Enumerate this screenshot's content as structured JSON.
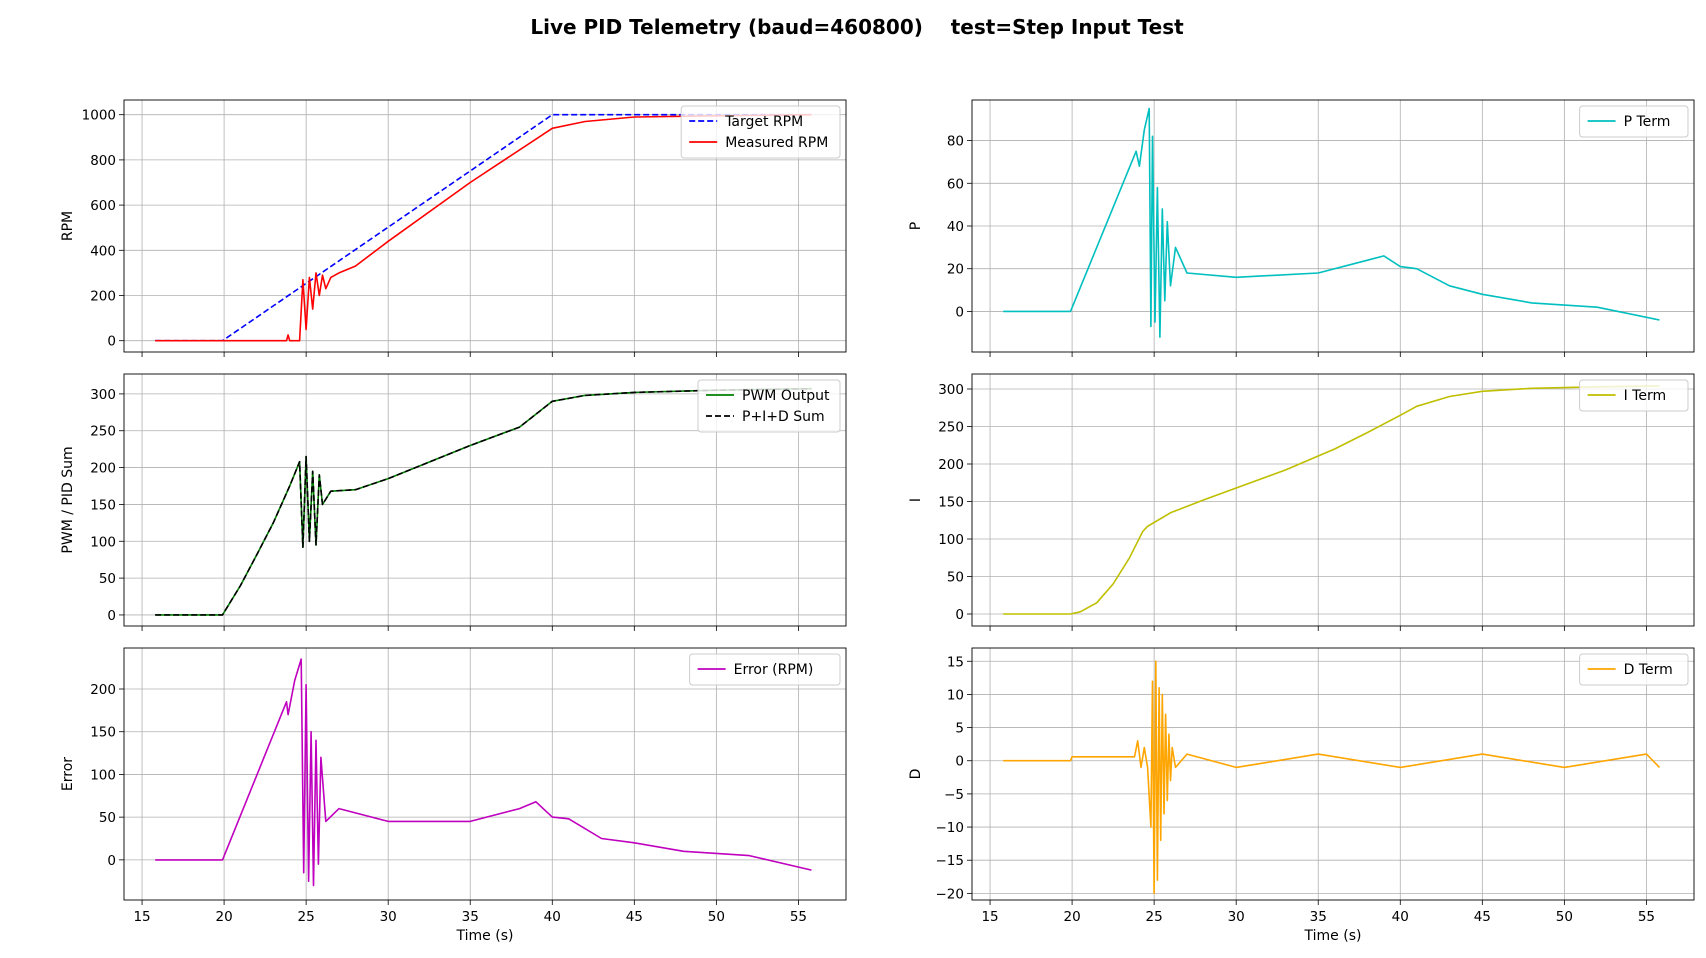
{
  "figure": {
    "title": "Live PID Telemetry (baud=460800)    test=Step Input Test"
  },
  "chart_data": [
    {
      "id": "rpm",
      "type": "line",
      "ylabel": "RPM",
      "xlabel": "",
      "xlim": [
        13.9,
        57.9
      ],
      "ylim": [
        -50,
        1065
      ],
      "xticks": [
        15,
        20,
        25,
        30,
        35,
        40,
        45,
        50,
        55
      ],
      "yticks": [
        0,
        200,
        400,
        600,
        800,
        1000
      ],
      "show_xticklabels": false,
      "grid": true,
      "legend_position": "upper-right",
      "series": [
        {
          "name": "Target RPM",
          "color": "#0000ff",
          "dash": "dashed",
          "x": [
            15.8,
            19.9,
            40.0,
            55.8
          ],
          "y": [
            0,
            0,
            1000,
            1000
          ]
        },
        {
          "name": "Measured RPM",
          "color": "#ff0000",
          "dash": "solid",
          "x": [
            15.8,
            19.9,
            23.8,
            23.9,
            24.0,
            24.6,
            24.8,
            25.0,
            25.2,
            25.4,
            25.6,
            25.8,
            26.0,
            26.2,
            26.5,
            27.0,
            28.0,
            30.0,
            35.0,
            40.0,
            42.0,
            45.0,
            50.0,
            55.8
          ],
          "y": [
            0,
            0,
            0,
            25,
            0,
            0,
            270,
            50,
            280,
            140,
            300,
            200,
            290,
            230,
            280,
            300,
            330,
            440,
            700,
            940,
            970,
            990,
            995,
            1000
          ]
        }
      ]
    },
    {
      "id": "p",
      "type": "line",
      "ylabel": "P",
      "xlabel": "",
      "xlim": [
        13.9,
        57.9
      ],
      "ylim": [
        -19,
        99
      ],
      "xticks": [
        15,
        20,
        25,
        30,
        35,
        40,
        45,
        50,
        55
      ],
      "yticks": [
        0,
        20,
        40,
        60,
        80
      ],
      "show_xticklabels": false,
      "grid": true,
      "legend_position": "upper-right",
      "series": [
        {
          "name": "P Term",
          "color": "#00bfbf",
          "dash": "solid",
          "x": [
            15.8,
            19.9,
            23.9,
            24.1,
            24.4,
            24.7,
            24.8,
            24.9,
            25.05,
            25.2,
            25.35,
            25.5,
            25.65,
            25.8,
            26.0,
            26.3,
            27.0,
            30.0,
            35.0,
            38.0,
            39.0,
            40.0,
            41.0,
            43.0,
            45.0,
            48.0,
            52.0,
            55.8
          ],
          "y": [
            0,
            0,
            75,
            68,
            85,
            95,
            -7,
            82,
            -5,
            58,
            -12,
            48,
            5,
            42,
            12,
            30,
            18,
            16,
            18,
            24,
            26,
            21,
            20,
            12,
            8,
            4,
            2,
            -4
          ]
        }
      ]
    },
    {
      "id": "pwm",
      "type": "line",
      "ylabel": "PWM / PID Sum",
      "xlabel": "",
      "xlim": [
        13.9,
        57.9
      ],
      "ylim": [
        -15,
        327
      ],
      "xticks": [
        15,
        20,
        25,
        30,
        35,
        40,
        45,
        50,
        55
      ],
      "yticks": [
        0,
        50,
        100,
        150,
        200,
        250,
        300
      ],
      "show_xticklabels": false,
      "grid": true,
      "legend_position": "upper-right",
      "series": [
        {
          "name": "PWM Output",
          "color": "#008000",
          "dash": "solid",
          "x": [
            15.8,
            19.9,
            21.0,
            22.0,
            23.0,
            24.0,
            24.6,
            24.8,
            25.0,
            25.2,
            25.4,
            25.6,
            25.8,
            26.0,
            26.5,
            28.0,
            30.0,
            35.0,
            38.0,
            40.0,
            42.0,
            45.0,
            50.0,
            55.8
          ],
          "y": [
            0,
            0,
            40,
            82,
            125,
            175,
            208,
            92,
            215,
            100,
            195,
            95,
            190,
            150,
            168,
            170,
            185,
            230,
            255,
            290,
            298,
            302,
            305,
            307
          ]
        },
        {
          "name": "P+I+D Sum",
          "color": "#000000",
          "dash": "dashed",
          "x": [
            15.8,
            19.9,
            21.0,
            22.0,
            23.0,
            24.0,
            24.6,
            24.8,
            25.0,
            25.2,
            25.4,
            25.6,
            25.8,
            26.0,
            26.5,
            28.0,
            30.0,
            35.0,
            38.0,
            40.0,
            42.0,
            45.0,
            50.0,
            55.8
          ],
          "y": [
            0,
            0,
            40,
            82,
            125,
            175,
            208,
            92,
            215,
            100,
            195,
            95,
            190,
            150,
            168,
            170,
            185,
            230,
            255,
            290,
            298,
            302,
            305,
            307
          ]
        }
      ]
    },
    {
      "id": "i",
      "type": "line",
      "ylabel": "I",
      "xlabel": "",
      "xlim": [
        13.9,
        57.9
      ],
      "ylim": [
        -16,
        320
      ],
      "xticks": [
        15,
        20,
        25,
        30,
        35,
        40,
        45,
        50,
        55
      ],
      "yticks": [
        0,
        50,
        100,
        150,
        200,
        250,
        300
      ],
      "show_xticklabels": false,
      "grid": true,
      "legend_position": "upper-right",
      "series": [
        {
          "name": "I Term",
          "color": "#bfbf00",
          "dash": "solid",
          "x": [
            15.8,
            19.9,
            20.5,
            21.5,
            22.5,
            23.5,
            24.3,
            24.6,
            25.0,
            26.0,
            28.0,
            30.0,
            33.0,
            36.0,
            38.0,
            40.0,
            41.0,
            43.0,
            45.0,
            48.0,
            52.0,
            55.8
          ],
          "y": [
            0,
            0,
            3,
            15,
            40,
            75,
            110,
            117,
            122,
            135,
            152,
            168,
            192,
            220,
            242,
            265,
            277,
            290,
            297,
            301,
            303,
            304
          ]
        }
      ]
    },
    {
      "id": "error",
      "type": "line",
      "ylabel": "Error",
      "xlabel": "Time (s)",
      "xlim": [
        13.9,
        57.9
      ],
      "ylim": [
        -47,
        248
      ],
      "xticks": [
        15,
        20,
        25,
        30,
        35,
        40,
        45,
        50,
        55
      ],
      "yticks": [
        0,
        50,
        100,
        150,
        200
      ],
      "show_xticklabels": true,
      "grid": true,
      "legend_position": "upper-right",
      "series": [
        {
          "name": "Error (RPM)",
          "color": "#bf00bf",
          "dash": "solid",
          "x": [
            15.8,
            19.9,
            23.8,
            23.9,
            24.3,
            24.7,
            24.85,
            25.0,
            25.15,
            25.3,
            25.45,
            25.6,
            25.75,
            25.9,
            26.2,
            27.0,
            30.0,
            35.0,
            38.0,
            39.0,
            40.0,
            41.0,
            43.0,
            45.0,
            48.0,
            52.0,
            55.8
          ],
          "y": [
            0,
            0,
            185,
            170,
            210,
            235,
            -15,
            205,
            -25,
            150,
            -30,
            140,
            -5,
            120,
            45,
            60,
            45,
            45,
            60,
            68,
            50,
            48,
            25,
            20,
            10,
            5,
            -12
          ]
        }
      ]
    },
    {
      "id": "d",
      "type": "line",
      "ylabel": "D",
      "xlabel": "Time (s)",
      "xlim": [
        13.9,
        57.9
      ],
      "ylim": [
        -21,
        17
      ],
      "xticks": [
        15,
        20,
        25,
        30,
        35,
        40,
        45,
        50,
        55
      ],
      "yticks": [
        -20,
        -15,
        -10,
        -5,
        0,
        5,
        10,
        15
      ],
      "show_xticklabels": true,
      "grid": true,
      "legend_position": "upper-right",
      "series": [
        {
          "name": "D Term",
          "color": "#ffa500",
          "dash": "solid",
          "x": [
            15.8,
            19.9,
            20.0,
            23.8,
            24.0,
            24.2,
            24.4,
            24.6,
            24.8,
            24.9,
            25.0,
            25.1,
            25.2,
            25.3,
            25.4,
            25.5,
            25.6,
            25.7,
            25.8,
            25.9,
            26.0,
            26.1,
            26.3,
            27.0,
            30.0,
            35.0,
            40.0,
            45.0,
            50.0,
            55.0,
            55.8
          ],
          "y": [
            0,
            0,
            0.6,
            0.6,
            3,
            -1,
            2,
            -1,
            -10,
            12,
            -20,
            15,
            -18,
            11,
            -12,
            10,
            -8,
            7,
            -6,
            4,
            -3,
            2,
            -1,
            1,
            -1,
            1,
            -1,
            1,
            -1,
            1,
            -1
          ]
        }
      ]
    }
  ]
}
